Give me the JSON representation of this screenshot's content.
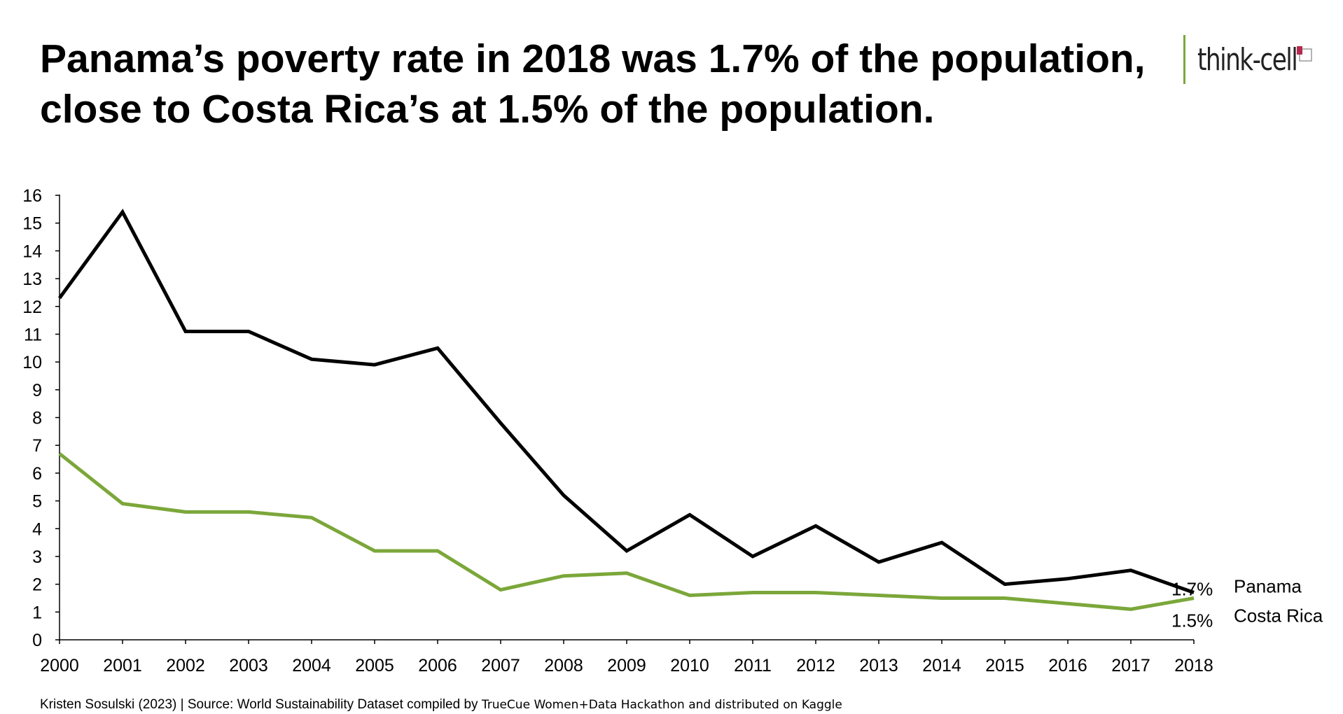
{
  "header": {
    "title_line1": "Panama’s poverty rate in 2018 was 1.7% of the population,",
    "title_line2": "close to Costa Rica’s at 1.5% of the population."
  },
  "logo": {
    "text": "think-cell",
    "accent_color": "#7ba73a",
    "mark_color": "#b5294e"
  },
  "footer": {
    "part1": "Kristen Sosulski (2023) | Source: World Sustainability Dataset compiled by ",
    "part2": "TrueCue Women+Data Hackathon and distributed on Kaggle"
  },
  "chart_data": {
    "type": "line",
    "title": "Panama’s poverty rate in 2018 was 1.7% of the population, close to Costa Rica’s at 1.5% of the population.",
    "xlabel": "",
    "ylabel": "",
    "x": [
      2000,
      2001,
      2002,
      2003,
      2004,
      2005,
      2006,
      2007,
      2008,
      2009,
      2010,
      2011,
      2012,
      2013,
      2014,
      2015,
      2016,
      2017,
      2018
    ],
    "x_tick_labels": [
      "2000",
      "2001",
      "2002",
      "2003",
      "2004",
      "2005",
      "2006",
      "2007",
      "2008",
      "2009",
      "2010",
      "2011",
      "2012",
      "2013",
      "2014",
      "2015",
      "2016",
      "2017",
      "2018"
    ],
    "y_ticks": [
      0,
      1,
      2,
      3,
      4,
      5,
      6,
      7,
      8,
      9,
      10,
      11,
      12,
      13,
      14,
      15,
      16
    ],
    "ylim": [
      0,
      16
    ],
    "grid": false,
    "series": [
      {
        "name": "Panama",
        "color": "#000000",
        "end_label": "1.7%",
        "values": [
          12.3,
          15.4,
          11.1,
          11.1,
          10.1,
          9.9,
          10.5,
          7.8,
          5.2,
          3.2,
          4.5,
          3.0,
          4.1,
          2.8,
          3.5,
          2.0,
          2.2,
          2.5,
          1.7
        ]
      },
      {
        "name": "Costa Rica",
        "color": "#7ba73a",
        "end_label": "1.5%",
        "values": [
          6.7,
          4.9,
          4.6,
          4.6,
          4.4,
          3.2,
          3.2,
          1.8,
          2.3,
          2.4,
          1.6,
          1.7,
          1.7,
          1.6,
          1.5,
          1.5,
          1.3,
          1.1,
          1.5
        ]
      }
    ]
  }
}
